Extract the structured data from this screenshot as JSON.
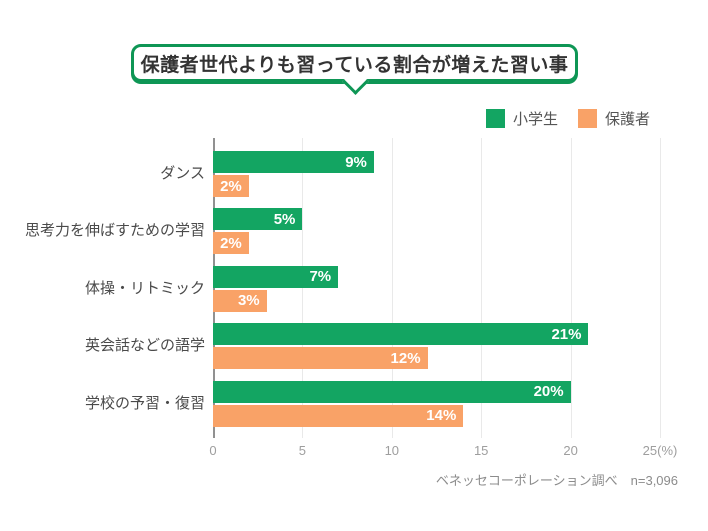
{
  "title": "保護者世代よりも習っている割合が増えた習い事",
  "footer": "ベネッセコーポレーション調べ　n=3,096",
  "colors": {
    "student_green": "#13a562",
    "parent_orange": "#f9a267",
    "bubble_border": "#0e9655",
    "gridline": "#e9e9e9",
    "axis": "#919191"
  },
  "chart_data": {
    "type": "bar",
    "orientation": "horizontal",
    "title": "保護者世代よりも習っている割合が増えた習い事",
    "categories": [
      "ダンス",
      "思考力を伸ばすための学習",
      "体操・リトミック",
      "英会話などの語学",
      "学校の予習・復習"
    ],
    "series": [
      {
        "name": "小学生",
        "color": "#13a562",
        "values": [
          9,
          5,
          7,
          21,
          20
        ]
      },
      {
        "name": "保護者",
        "color": "#f9a267",
        "values": [
          2,
          2,
          3,
          12,
          14
        ]
      }
    ],
    "unit": "%",
    "xlim": [
      0,
      25
    ],
    "x_ticks": [
      "0",
      "5",
      "10",
      "15",
      "20",
      "25(%)"
    ],
    "grid": true,
    "legend_position": "top-right",
    "source_note": "ベネッセコーポレーション調べ　n=3,096"
  }
}
